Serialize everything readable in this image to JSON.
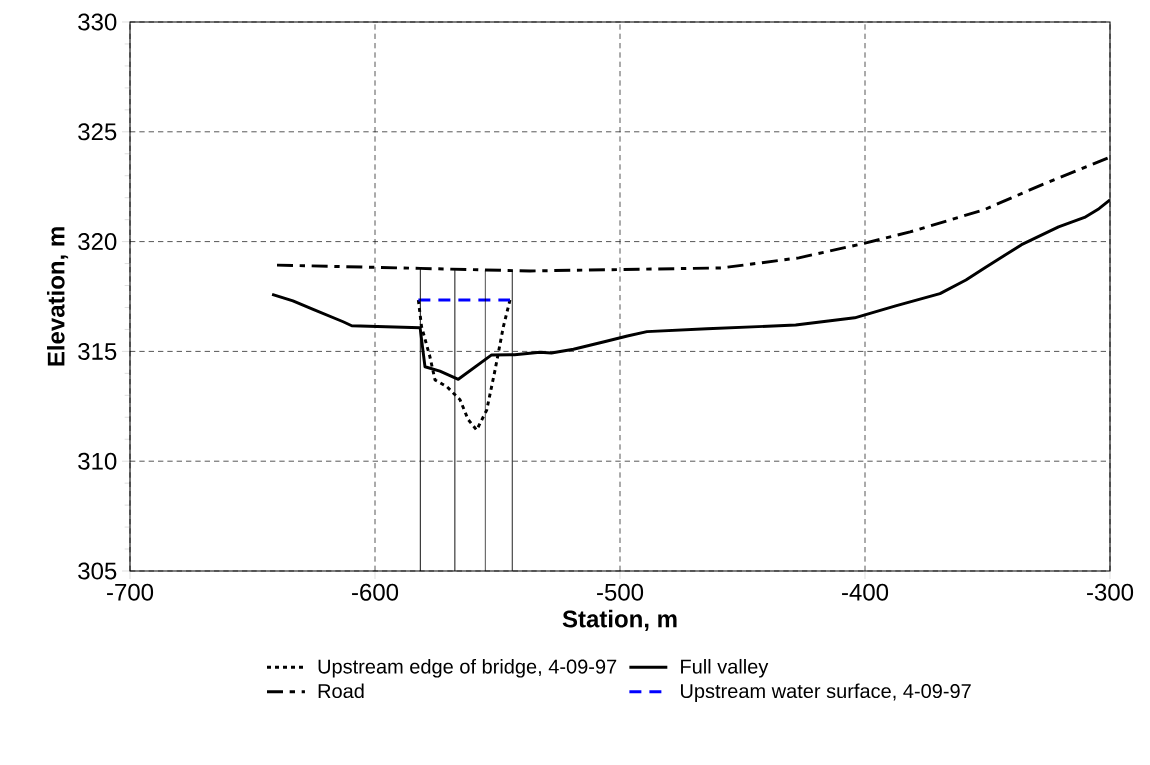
{
  "chart_data": {
    "type": "line",
    "xlabel": "Station, m",
    "ylabel": "Elevation, m",
    "xlim": [
      -700,
      -300
    ],
    "ylim": [
      305,
      330
    ],
    "xticks": [
      -700,
      -600,
      -500,
      -400,
      -300
    ],
    "yticks": [
      305,
      310,
      315,
      320,
      325,
      330
    ],
    "grid": true,
    "legend": "bottom",
    "series": [
      {
        "name": "Upstream edge of bridge, 4-09-97",
        "color": "#000000",
        "line_style": "dotted",
        "x": [
          -582.3,
          -581,
          -577.6,
          -575.5,
          -570.7,
          -565.3,
          -562,
          -558.5,
          -554.4,
          -551,
          -547.6,
          -544.9
        ],
        "values": [
          317.34,
          316.13,
          314.76,
          313.7,
          313.4,
          312.8,
          311.9,
          311.42,
          312.33,
          314.15,
          316.13,
          317.34
        ]
      },
      {
        "name": "Full valley",
        "color": "#000000",
        "line_style": "solid",
        "x": [
          -642,
          -633.5,
          -625,
          -613,
          -609.5,
          -581.6,
          -579.6,
          -573.5,
          -566,
          -552.4,
          -543,
          -532.7,
          -528,
          -519,
          -506,
          -497,
          -489,
          -464.5,
          -428.3,
          -404.2,
          -387.5,
          -369.4,
          -358.8,
          -351.2,
          -336.1,
          -321,
          -310.4,
          -304.5,
          -300
        ],
        "values": [
          317.6,
          317.3,
          316.9,
          316.35,
          316.17,
          316.08,
          314.3,
          314.1,
          313.73,
          314.84,
          314.85,
          314.96,
          314.93,
          315.1,
          315.45,
          315.7,
          315.9,
          316.03,
          316.2,
          316.53,
          317.07,
          317.63,
          318.25,
          318.8,
          319.86,
          320.67,
          321.1,
          321.5,
          321.9
        ]
      },
      {
        "name": "Road",
        "color": "#000000",
        "line_style": "dashdot",
        "x": [
          -640,
          -581.6,
          -536.7,
          -532.7,
          -458.6,
          -427,
          -401.2,
          -381.6,
          -351.2,
          -328.6,
          -300
        ],
        "values": [
          318.93,
          318.78,
          318.66,
          318.67,
          318.8,
          319.26,
          319.9,
          320.44,
          321.46,
          322.55,
          323.85
        ]
      },
      {
        "name": "Upstream water surface, 4-09-97",
        "color": "#0000ff",
        "line_style": "dashed",
        "x": [
          -582.3,
          -544.9
        ],
        "values": [
          317.34,
          317.34
        ]
      },
      {
        "color": "#000000",
        "line_style": "solid",
        "x": [
          -581.5,
          -581.5
        ],
        "values": [
          305,
          318.78
        ]
      },
      {
        "color": "#000000",
        "line_style": "solid",
        "x": [
          -567.4,
          -567.4
        ],
        "values": [
          305,
          318.7
        ]
      },
      {
        "color": "#000000",
        "line_style": "solid",
        "x": [
          -555,
          -555
        ],
        "values": [
          305,
          318.68
        ]
      },
      {
        "color": "#000000",
        "line_style": "solid",
        "x": [
          -544,
          -544
        ],
        "values": [
          305,
          318.66
        ]
      }
    ]
  }
}
